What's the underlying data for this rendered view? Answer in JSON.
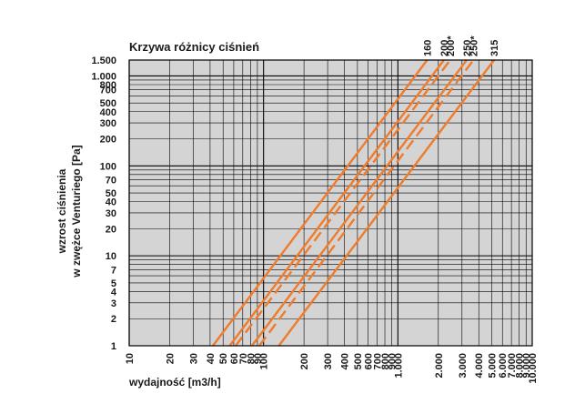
{
  "chart_data": {
    "type": "line",
    "title": "Krzywa różnicy ciśnień",
    "xlabel": "wydajność [m3/h]",
    "ylabel_line1": "wzrost ciśnienia",
    "ylabel_line2": "w zwężce Venturiego [Pa]",
    "x_scale": "log",
    "y_scale": "log",
    "xlim": [
      10,
      10000
    ],
    "ylim": [
      1,
      1500
    ],
    "grid": true,
    "background": "#d4d4d4",
    "x_ticks": [
      {
        "value": 10,
        "label": "10"
      },
      {
        "value": 20,
        "label": "20"
      },
      {
        "value": 30,
        "label": "30"
      },
      {
        "value": 40,
        "label": "40"
      },
      {
        "value": 50,
        "label": "50"
      },
      {
        "value": 60,
        "label": "60"
      },
      {
        "value": 70,
        "label": "70"
      },
      {
        "value": 80,
        "label": "80"
      },
      {
        "value": 90,
        "label": "90"
      },
      {
        "value": 100,
        "label": "100"
      },
      {
        "value": 200,
        "label": "200"
      },
      {
        "value": 300,
        "label": "300"
      },
      {
        "value": 400,
        "label": "400"
      },
      {
        "value": 500,
        "label": "500"
      },
      {
        "value": 600,
        "label": "600"
      },
      {
        "value": 700,
        "label": "700"
      },
      {
        "value": 800,
        "label": "800"
      },
      {
        "value": 900,
        "label": "900"
      },
      {
        "value": 1000,
        "label": "1.000"
      },
      {
        "value": 2000,
        "label": "2.000"
      },
      {
        "value": 3000,
        "label": "3.000"
      },
      {
        "value": 4000,
        "label": "4.000"
      },
      {
        "value": 5000,
        "label": "5.000"
      },
      {
        "value": 6000,
        "label": "6.000"
      },
      {
        "value": 7000,
        "label": "7.000"
      },
      {
        "value": 8000,
        "label": "8.000"
      },
      {
        "value": 9000,
        "label": "9.000"
      },
      {
        "value": 10000,
        "label": "10.000"
      }
    ],
    "y_ticks": [
      {
        "value": 1,
        "label": "1"
      },
      {
        "value": 2,
        "label": "2"
      },
      {
        "value": 3,
        "label": "3"
      },
      {
        "value": 4,
        "label": "4"
      },
      {
        "value": 5,
        "label": "5"
      },
      {
        "value": 7,
        "label": "7"
      },
      {
        "value": 10,
        "label": "10"
      },
      {
        "value": 20,
        "label": "20"
      },
      {
        "value": 30,
        "label": "30"
      },
      {
        "value": 40,
        "label": "40"
      },
      {
        "value": 50,
        "label": "50"
      },
      {
        "value": 70,
        "label": "70"
      },
      {
        "value": 100,
        "label": "100"
      },
      {
        "value": 200,
        "label": "200"
      },
      {
        "value": 300,
        "label": "300"
      },
      {
        "value": 400,
        "label": "400"
      },
      {
        "value": 500,
        "label": "500"
      },
      {
        "value": 700,
        "label": "700"
      },
      {
        "value": 800,
        "label": "800"
      },
      {
        "value": 1000,
        "label": "1.000"
      },
      {
        "value": 1500,
        "label": "1.500"
      }
    ],
    "series": [
      {
        "name": "160",
        "style": "solid",
        "color": "#f07b2a",
        "x": [
          42,
          1650
        ],
        "y": [
          1,
          1500
        ]
      },
      {
        "name": "200",
        "style": "solid",
        "color": "#f07b2a",
        "x": [
          56,
          2200
        ],
        "y": [
          1,
          1500
        ]
      },
      {
        "name": "200*",
        "style": "dashed",
        "color": "#f07b2a",
        "x": [
          62,
          2450
        ],
        "y": [
          1,
          1500
        ]
      },
      {
        "name": "250",
        "style": "solid",
        "color": "#f07b2a",
        "x": [
          82,
          3250
        ],
        "y": [
          1,
          1500
        ]
      },
      {
        "name": "250*",
        "style": "dashed",
        "color": "#f07b2a",
        "x": [
          93,
          3650
        ],
        "y": [
          1,
          1500
        ]
      },
      {
        "name": "315",
        "style": "solid",
        "color": "#f07b2a",
        "x": [
          130,
          5200
        ],
        "y": [
          1,
          1500
        ]
      }
    ]
  }
}
